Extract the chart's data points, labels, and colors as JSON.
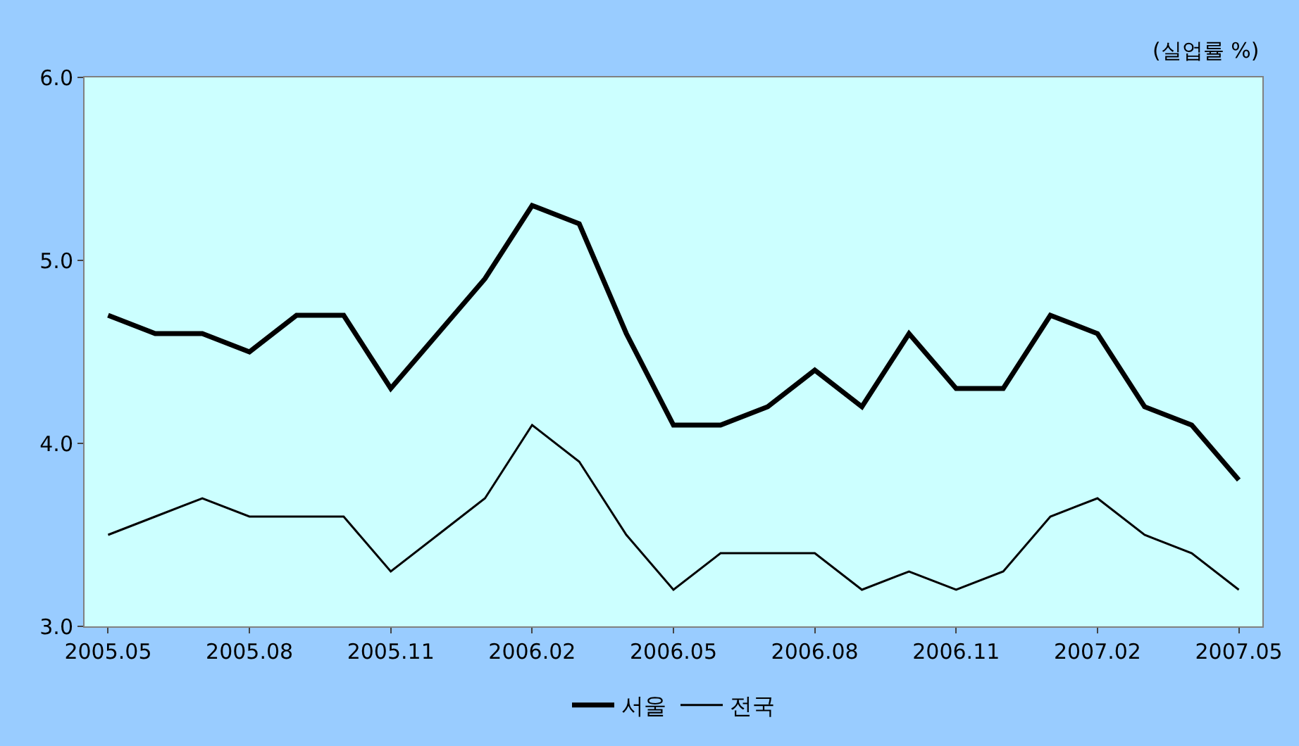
{
  "chart_data": {
    "type": "line",
    "annotations": [
      "(실업률 %)"
    ],
    "categories": [
      "2005.05",
      null,
      null,
      "2005.08",
      null,
      null,
      "2005.11",
      null,
      null,
      "2006.02",
      null,
      null,
      "2006.05",
      null,
      null,
      "2006.08",
      null,
      null,
      "2006.11",
      null,
      null,
      "2007.02",
      null,
      null,
      "2007.05"
    ],
    "series": [
      {
        "name": "서울",
        "color": "#000000",
        "values": [
          4.7,
          4.6,
          4.6,
          4.5,
          4.7,
          4.7,
          4.3,
          4.6,
          4.9,
          5.3,
          5.2,
          4.6,
          4.1,
          4.1,
          4.2,
          4.4,
          4.2,
          4.6,
          4.3,
          4.3,
          4.7,
          4.6,
          4.2,
          4.1,
          3.8
        ]
      },
      {
        "name": "전국",
        "color": "#000000",
        "values": [
          3.5,
          3.6,
          3.7,
          3.6,
          3.6,
          3.6,
          3.3,
          3.5,
          3.7,
          4.1,
          3.9,
          3.5,
          3.2,
          3.4,
          3.4,
          3.4,
          3.2,
          3.3,
          3.2,
          3.3,
          3.6,
          3.7,
          3.5,
          3.4,
          3.2
        ]
      }
    ],
    "ylim": [
      3.0,
      6.0
    ],
    "yticks": [
      {
        "value": 3.0,
        "label": "3.0"
      },
      {
        "value": 4.0,
        "label": "4.0"
      },
      {
        "value": 5.0,
        "label": "5.0"
      },
      {
        "value": 6.0,
        "label": "6.0"
      }
    ],
    "legend": "bottom",
    "marker": "none",
    "line_style": "solid"
  }
}
